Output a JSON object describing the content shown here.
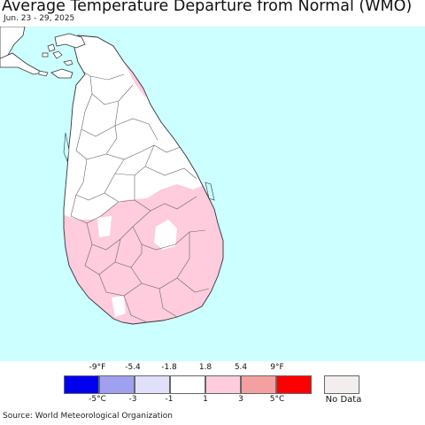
{
  "title": "Average Temperature Departure from Normal (WMO)",
  "date_range": "Jun. 23 - 29, 2025",
  "source": "Source: World Meteorological Organization",
  "colors": {
    "ocean": "#ccffff",
    "land_normal": "#ffffff",
    "land_warm": "#ffccdd",
    "boundary": "#666666",
    "coast": "#333333"
  },
  "legend": {
    "fahrenheit_ticks": [
      "-9°F",
      "-5.4",
      "-1.8",
      "1.8",
      "5.4",
      "9°F"
    ],
    "celsius_ticks": [
      "-5°C",
      "-3",
      "-1",
      "1",
      "3",
      "5°C"
    ],
    "bins": [
      {
        "color": "#0000ee"
      },
      {
        "color": "#a0a0f0"
      },
      {
        "color": "#e0e0fa"
      },
      {
        "color": "#ffffff"
      },
      {
        "color": "#ffccdd"
      },
      {
        "color": "#f5a0a0"
      },
      {
        "color": "#ff0000"
      }
    ],
    "no_data": {
      "label": "No Data",
      "color": "#f2eeee"
    }
  }
}
